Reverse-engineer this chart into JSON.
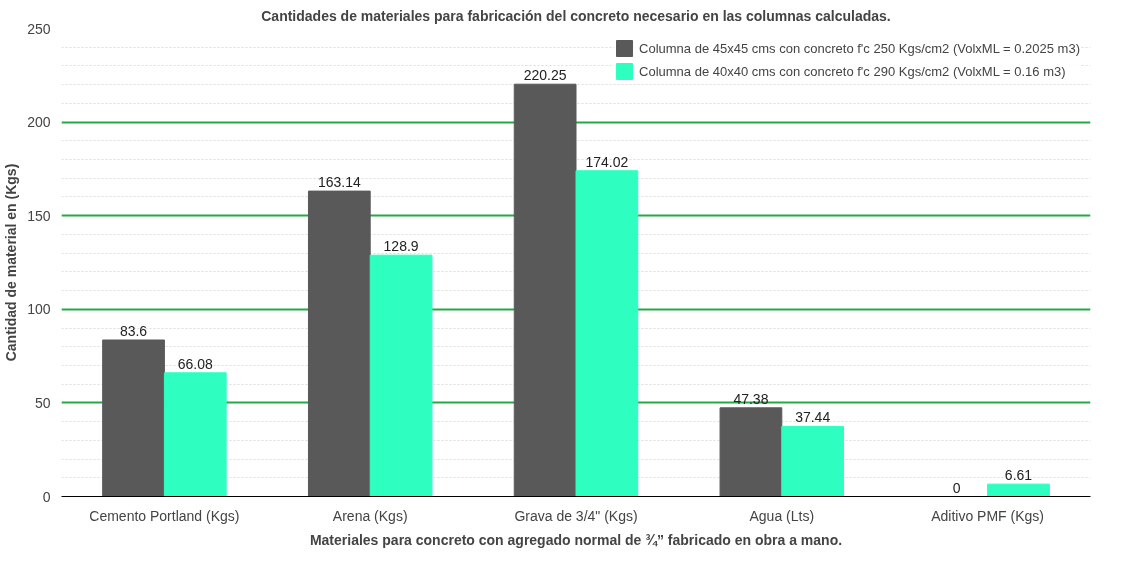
{
  "chart_data": {
    "type": "bar",
    "title": "Cantidades de materiales para fabricación del concreto necesario en las columnas calculadas.",
    "xlabel": "Materiales para concreto con agregado normal de ¾” fabricado en obra a mano.",
    "ylabel": "Cantidad de material en (Kgs)",
    "categories": [
      "Cemento Portland (Kgs)",
      "Arena (Kgs)",
      "Grava de 3/4\" (Kgs)",
      "Agua (Lts)",
      "Aditivo PMF (Kgs)"
    ],
    "series": [
      {
        "name": "Columna de 45x45 cms con concreto f'c 250 Kgs/cm2 (VolxML = 0.2025 m3)",
        "color": "#595959",
        "values": [
          83.6,
          163.14,
          220.25,
          47.38,
          0
        ]
      },
      {
        "name": "Columna de 40x40 cms con concreto f'c 290 Kgs/cm2 (VolxML = 0.16 m3)",
        "color": "#2effc0",
        "values": [
          66.08,
          128.9,
          174.02,
          37.44,
          6.61
        ]
      }
    ],
    "ylim": [
      0,
      250
    ],
    "yticks": [
      0,
      50,
      100,
      150,
      200,
      250
    ],
    "grid": "y",
    "legend": "top right",
    "data_labels": true
  }
}
